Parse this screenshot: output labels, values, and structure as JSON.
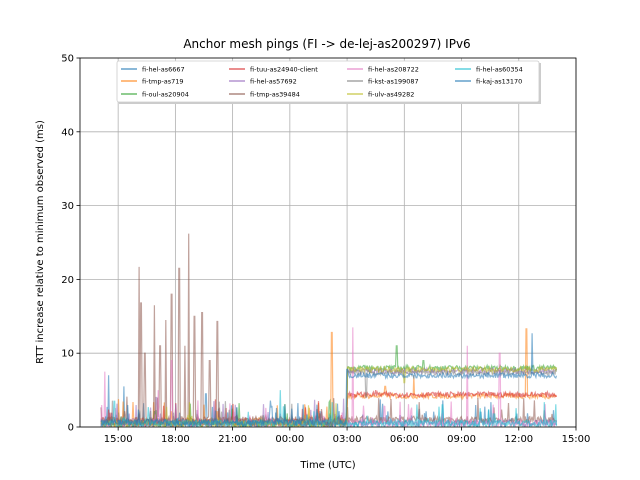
{
  "chart_data": {
    "type": "line",
    "title": "Anchor mesh pings (FI -> de-lej-as200297) IPv6",
    "xlabel": "Time (UTC)",
    "ylabel": "RTT increase relative to minimum observed (ms)",
    "ylim": [
      0,
      50
    ],
    "xlim_hours": [
      13.0,
      39.0
    ],
    "x_ticks": [
      {
        "label": "15:00",
        "hour": 15
      },
      {
        "label": "18:00",
        "hour": 18
      },
      {
        "label": "21:00",
        "hour": 21
      },
      {
        "label": "00:00",
        "hour": 24
      },
      {
        "label": "03:00",
        "hour": 27
      },
      {
        "label": "06:00",
        "hour": 30
      },
      {
        "label": "09:00",
        "hour": 33
      },
      {
        "label": "12:00",
        "hour": 36
      },
      {
        "label": "15:00",
        "hour": 39
      }
    ],
    "y_ticks": [
      0,
      10,
      20,
      30,
      40,
      50
    ],
    "grid": true,
    "legend_position": "top",
    "legend_columns": 4,
    "series": [
      {
        "name": "fi-hel-as6667",
        "color": "#1f77b4",
        "baseline": 0.5,
        "spikes": [
          [
            14.5,
            7.0
          ],
          [
            15.3,
            5.5
          ],
          [
            19.6,
            4.5
          ],
          [
            34.0,
            2.0
          ]
        ]
      },
      {
        "name": "fi-tmp-as719",
        "color": "#ff7f0e",
        "baseline": 0.8,
        "level_segments": [
          [
            27.0,
            39.0,
            4.2
          ]
        ],
        "spikes": [
          [
            26.2,
            12.8
          ],
          [
            30.5,
            7.0
          ],
          [
            36.4,
            13.3
          ],
          [
            29.0,
            5.5
          ]
        ]
      },
      {
        "name": "fi-oul-as20904",
        "color": "#2ca02c",
        "baseline": 0.5,
        "level_segments": [
          [
            27.0,
            39.0,
            8.0
          ]
        ],
        "spikes": [
          [
            29.6,
            11.0
          ],
          [
            31.0,
            9.0
          ]
        ]
      },
      {
        "name": "fi-tuu-as24940-client",
        "color": "#d62728",
        "baseline": 0.6,
        "level_segments": [
          [
            27.0,
            39.0,
            4.4
          ]
        ],
        "spikes": [
          [
            25.5,
            3.5
          ],
          [
            28.5,
            5.0
          ]
        ]
      },
      {
        "name": "fi-hel-as57692",
        "color": "#9467bd",
        "baseline": 0.7,
        "level_segments": [
          [
            27.0,
            39.0,
            7.6
          ]
        ],
        "spikes": [
          [
            17.0,
            4.0
          ]
        ]
      },
      {
        "name": "fi-tmp-as39484",
        "color": "#8c564b",
        "baseline": 1.0,
        "spikes": [
          [
            16.1,
            21.7
          ],
          [
            16.2,
            16.8
          ],
          [
            16.4,
            10.0
          ],
          [
            16.9,
            16.5
          ],
          [
            17.2,
            11.0
          ],
          [
            17.5,
            14.5
          ],
          [
            17.8,
            18.0
          ],
          [
            18.2,
            21.5
          ],
          [
            18.5,
            11.0
          ],
          [
            18.7,
            26.2
          ],
          [
            19.0,
            15.0
          ],
          [
            19.4,
            15.5
          ],
          [
            19.8,
            9.0
          ],
          [
            20.2,
            14.3
          ]
        ]
      },
      {
        "name": "fi-hel-as208722",
        "color": "#e377c2",
        "baseline": 0.5,
        "spikes": [
          [
            14.3,
            7.5
          ],
          [
            17.1,
            5.0
          ],
          [
            27.3,
            13.5
          ],
          [
            33.3,
            11.0
          ],
          [
            35.0,
            10.0
          ],
          [
            17.8,
            9.0
          ]
        ]
      },
      {
        "name": "fi-kst-as199087",
        "color": "#7f7f7f",
        "baseline": 0.6,
        "level_segments": [
          [
            27.0,
            39.0,
            7.4
          ]
        ],
        "spikes": [
          [
            28.0,
            4.0
          ]
        ]
      },
      {
        "name": "fi-ulv-as49282",
        "color": "#bcbd22",
        "baseline": 0.4,
        "level_segments": [
          [
            27.0,
            39.0,
            7.8
          ]
        ],
        "spikes": [
          [
            30.0,
            6.0
          ]
        ]
      },
      {
        "name": "fi-hel-as60354",
        "color": "#17becf",
        "baseline": 0.5,
        "spikes": [
          [
            14.8,
            3.5
          ],
          [
            23.5,
            5.0
          ],
          [
            32.0,
            3.0
          ]
        ]
      },
      {
        "name": "fi-kaj-as13170",
        "color": "#1f77b4",
        "baseline": 0.6,
        "level_segments": [
          [
            27.0,
            39.0,
            7.0
          ]
        ],
        "spikes": [
          [
            36.7,
            12.7
          ],
          [
            38.1,
            10.7
          ],
          [
            27.0,
            7.8
          ]
        ]
      }
    ]
  }
}
